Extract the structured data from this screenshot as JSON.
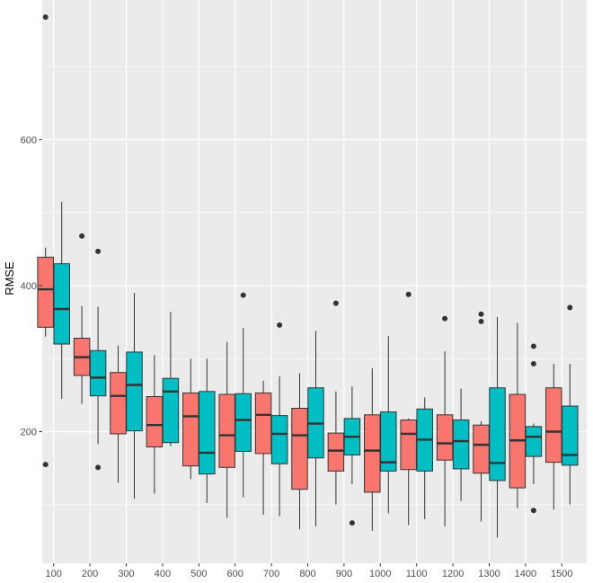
{
  "chart_data": {
    "type": "boxplot",
    "title": "",
    "xlabel": "",
    "ylabel": "RMSE",
    "ylim": [
      0,
      770
    ],
    "y_ticks": [
      200,
      400,
      600
    ],
    "grid": true,
    "legend": "none",
    "categories": [
      "100",
      "200",
      "300",
      "400",
      "500",
      "600",
      "700",
      "800",
      "900",
      "1000",
      "1100",
      "1200",
      "1300",
      "1400",
      "1500"
    ],
    "series": [
      {
        "color": "#F8766D",
        "boxes": [
          {
            "whisker_low": 330,
            "q1": 343,
            "median": 395,
            "q3": 439,
            "whisker_high": 452,
            "outliers": [
              768,
              155
            ]
          },
          {
            "whisker_low": 238,
            "q1": 277,
            "median": 302,
            "q3": 328,
            "whisker_high": 372,
            "outliers": [
              468
            ]
          },
          {
            "whisker_low": 130,
            "q1": 197,
            "median": 249,
            "q3": 281,
            "whisker_high": 318,
            "outliers": []
          },
          {
            "whisker_low": 115,
            "q1": 179,
            "median": 209,
            "q3": 248,
            "whisker_high": 305,
            "outliers": []
          },
          {
            "whisker_low": 135,
            "q1": 153,
            "median": 221,
            "q3": 253,
            "whisker_high": 300,
            "outliers": []
          },
          {
            "whisker_low": 82,
            "q1": 151,
            "median": 195,
            "q3": 251,
            "whisker_high": 323,
            "outliers": []
          },
          {
            "whisker_low": 86,
            "q1": 170,
            "median": 223,
            "q3": 253,
            "whisker_high": 270,
            "outliers": []
          },
          {
            "whisker_low": 66,
            "q1": 121,
            "median": 195,
            "q3": 232,
            "whisker_high": 280,
            "outliers": []
          },
          {
            "whisker_low": 100,
            "q1": 146,
            "median": 174,
            "q3": 198,
            "whisker_high": 255,
            "outliers": [
              376
            ]
          },
          {
            "whisker_low": 64,
            "q1": 117,
            "median": 174,
            "q3": 223,
            "whisker_high": 287,
            "outliers": []
          },
          {
            "whisker_low": 72,
            "q1": 148,
            "median": 197,
            "q3": 216,
            "whisker_high": 218,
            "outliers": [
              388
            ]
          },
          {
            "whisker_low": 70,
            "q1": 161,
            "median": 184,
            "q3": 223,
            "whisker_high": 310,
            "outliers": [
              355
            ]
          },
          {
            "whisker_low": 77,
            "q1": 143,
            "median": 182,
            "q3": 209,
            "whisker_high": 214,
            "outliers": [
              361,
              351
            ]
          },
          {
            "whisker_low": 95,
            "q1": 123,
            "median": 188,
            "q3": 251,
            "whisker_high": 349,
            "outliers": []
          },
          {
            "whisker_low": 93,
            "q1": 158,
            "median": 200,
            "q3": 260,
            "whisker_high": 293,
            "outliers": []
          }
        ]
      },
      {
        "color": "#00BFC4",
        "boxes": [
          {
            "whisker_low": 245,
            "q1": 320,
            "median": 368,
            "q3": 430,
            "whisker_high": 515,
            "outliers": []
          },
          {
            "whisker_low": 183,
            "q1": 249,
            "median": 274,
            "q3": 311,
            "whisker_high": 371,
            "outliers": [
              447,
              151
            ]
          },
          {
            "whisker_low": 108,
            "q1": 201,
            "median": 264,
            "q3": 309,
            "whisker_high": 390,
            "outliers": []
          },
          {
            "whisker_low": 180,
            "q1": 185,
            "median": 255,
            "q3": 273,
            "whisker_high": 364,
            "outliers": []
          },
          {
            "whisker_low": 102,
            "q1": 142,
            "median": 171,
            "q3": 255,
            "whisker_high": 300,
            "outliers": []
          },
          {
            "whisker_low": 110,
            "q1": 173,
            "median": 216,
            "q3": 252,
            "whisker_high": 342,
            "outliers": [
              387
            ]
          },
          {
            "whisker_low": 84,
            "q1": 156,
            "median": 197,
            "q3": 222,
            "whisker_high": 276,
            "outliers": [
              346
            ]
          },
          {
            "whisker_low": 70,
            "q1": 164,
            "median": 211,
            "q3": 260,
            "whisker_high": 338,
            "outliers": []
          },
          {
            "whisker_low": 128,
            "q1": 168,
            "median": 193,
            "q3": 218,
            "whisker_high": 262,
            "outliers": [
              75
            ]
          },
          {
            "whisker_low": 88,
            "q1": 146,
            "median": 158,
            "q3": 227,
            "whisker_high": 331,
            "outliers": []
          },
          {
            "whisker_low": 80,
            "q1": 146,
            "median": 189,
            "q3": 231,
            "whisker_high": 247,
            "outliers": []
          },
          {
            "whisker_low": 105,
            "q1": 149,
            "median": 187,
            "q3": 216,
            "whisker_high": 259,
            "outliers": []
          },
          {
            "whisker_low": 55,
            "q1": 133,
            "median": 157,
            "q3": 260,
            "whisker_high": 357,
            "outliers": []
          },
          {
            "whisker_low": 128,
            "q1": 166,
            "median": 193,
            "q3": 207,
            "whisker_high": 211,
            "outliers": [
              317,
              293,
              92
            ]
          },
          {
            "whisker_low": 100,
            "q1": 154,
            "median": 168,
            "q3": 235,
            "whisker_high": 293,
            "outliers": [
              370
            ]
          }
        ]
      }
    ]
  },
  "colors": {
    "panel_background": "#EBEBEB",
    "grid_major": "#FFFFFF",
    "box_outline": "#333333",
    "tick_text": "#4D4D4D"
  }
}
